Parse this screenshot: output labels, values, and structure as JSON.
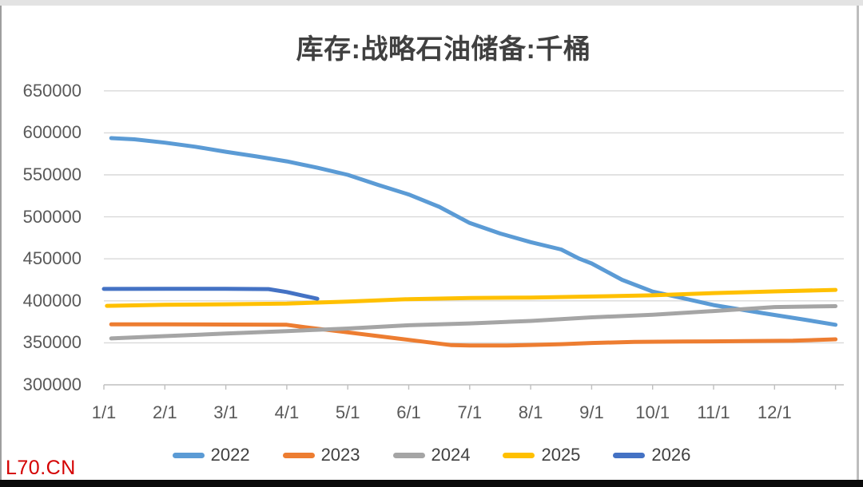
{
  "frame": {
    "watermark": "L70.CN",
    "colors": {
      "watermark": "#D40000",
      "title_text": "#404040",
      "axis_text": "#595959",
      "legend_text": "#404040",
      "gridline": "#D9D9D9",
      "axis_line": "#BFBFBF",
      "top_strip": "#E3E3E3",
      "bottom_strip": "#0A0A0A",
      "side_border": "#9E9E9E"
    }
  },
  "chart_data": {
    "type": "line",
    "title": "库存:战略石油储备:千桶",
    "grid": "horizontal",
    "legend_position": "bottom",
    "y_axis": {
      "min": 300000,
      "max": 650000,
      "tick_interval": 50000,
      "tick_values": [
        650000,
        600000,
        550000,
        500000,
        450000,
        400000,
        350000,
        300000
      ],
      "tick_labels": [
        "650000",
        "600000",
        "550000",
        "500000",
        "450000",
        "400000",
        "350000",
        "300000"
      ]
    },
    "x_axis": {
      "tick_labels": [
        "1/1",
        "2/1",
        "3/1",
        "4/1",
        "5/1",
        "6/1",
        "7/1",
        "8/1",
        "9/1",
        "10/1",
        "11/1",
        "12/1"
      ],
      "months_span": [
        0,
        12
      ]
    },
    "series": [
      {
        "name": "2022",
        "color": "#5B9BD5",
        "points_month_value": [
          [
            0.12,
            593700
          ],
          [
            0.5,
            592300
          ],
          [
            1,
            588300
          ],
          [
            1.5,
            583500
          ],
          [
            2,
            577500
          ],
          [
            2.5,
            572000
          ],
          [
            3,
            566100
          ],
          [
            3.5,
            558500
          ],
          [
            4,
            550000
          ],
          [
            4.5,
            538000
          ],
          [
            5,
            526600
          ],
          [
            5.5,
            512000
          ],
          [
            6,
            492700
          ],
          [
            6.5,
            480100
          ],
          [
            7,
            469900
          ],
          [
            7.5,
            461100
          ],
          [
            7.8,
            450100
          ],
          [
            8,
            444500
          ],
          [
            8.5,
            425000
          ],
          [
            9,
            411000
          ],
          [
            9.5,
            403000
          ],
          [
            10,
            395000
          ],
          [
            10.8,
            385500
          ],
          [
            11.5,
            377500
          ],
          [
            12,
            371500
          ]
        ]
      },
      {
        "name": "2023",
        "color": "#ED7D31",
        "points_month_value": [
          [
            0.12,
            372000
          ],
          [
            1,
            372000
          ],
          [
            2,
            371800
          ],
          [
            3,
            371500
          ],
          [
            3.2,
            369500
          ],
          [
            4,
            362500
          ],
          [
            4.5,
            358000
          ],
          [
            5,
            353500
          ],
          [
            5.7,
            347200
          ],
          [
            6,
            346800
          ],
          [
            6.6,
            346800
          ],
          [
            7,
            347400
          ],
          [
            7.5,
            348400
          ],
          [
            8,
            349800
          ],
          [
            8.7,
            351000
          ],
          [
            9.5,
            351500
          ],
          [
            10.5,
            352000
          ],
          [
            11.3,
            352500
          ],
          [
            12,
            354200
          ]
        ]
      },
      {
        "name": "2024",
        "color": "#A5A5A5",
        "points_month_value": [
          [
            0.12,
            355200
          ],
          [
            1,
            358000
          ],
          [
            2,
            361000
          ],
          [
            3,
            364000
          ],
          [
            4,
            367000
          ],
          [
            5,
            370900
          ],
          [
            6,
            373100
          ],
          [
            7,
            376000
          ],
          [
            8,
            380300
          ],
          [
            9,
            383400
          ],
          [
            10,
            387800
          ],
          [
            11,
            392600
          ],
          [
            12,
            393600
          ]
        ]
      },
      {
        "name": "2025",
        "color": "#FFC000",
        "points_month_value": [
          [
            0.05,
            394000
          ],
          [
            1,
            395300
          ],
          [
            2,
            395900
          ],
          [
            3,
            396700
          ],
          [
            4,
            399100
          ],
          [
            5,
            402000
          ],
          [
            6,
            403300
          ],
          [
            7,
            403900
          ],
          [
            8,
            405100
          ],
          [
            9,
            406600
          ],
          [
            10,
            409200
          ],
          [
            11,
            411200
          ],
          [
            12,
            413000
          ]
        ]
      },
      {
        "name": "2026",
        "color": "#4472C4",
        "points_month_value": [
          [
            0,
            414200
          ],
          [
            1,
            414300
          ],
          [
            2,
            414300
          ],
          [
            2.7,
            414000
          ],
          [
            3,
            410500
          ],
          [
            3.5,
            402500
          ]
        ]
      }
    ]
  }
}
